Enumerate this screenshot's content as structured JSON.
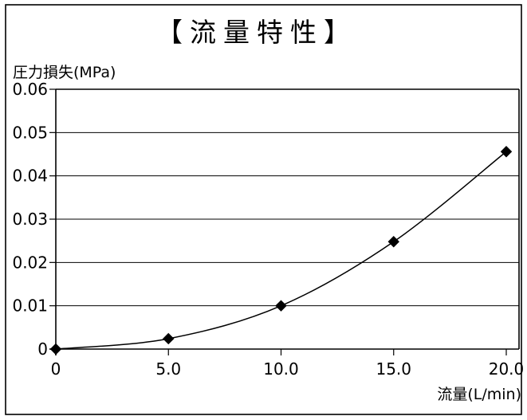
{
  "chart_data": {
    "type": "line",
    "title": "【流量特性】",
    "xlabel": "流量(L/min)",
    "ylabel": "圧力損失(MPa)",
    "xlim": [
      0,
      20
    ],
    "ylim": [
      0,
      0.06
    ],
    "xtick_values": [
      0,
      5,
      10,
      15,
      20
    ],
    "xticks": [
      "0",
      "5.0",
      "10.0",
      "15.0",
      "20.0"
    ],
    "ytick_values": [
      0,
      0.01,
      0.02,
      0.03,
      0.04,
      0.05,
      0.06
    ],
    "yticks": [
      "0",
      "0.01",
      "0.02",
      "0.03",
      "0.04",
      "0.05",
      "0.06"
    ],
    "series": [
      {
        "x": [
          0,
          5,
          10,
          15,
          20
        ],
        "y": [
          0,
          0.0024,
          0.01,
          0.0248,
          0.0456
        ],
        "marker": "diamond",
        "line": "smooth",
        "color": "#000000"
      }
    ],
    "grid": "horizontal",
    "legend": "none"
  }
}
